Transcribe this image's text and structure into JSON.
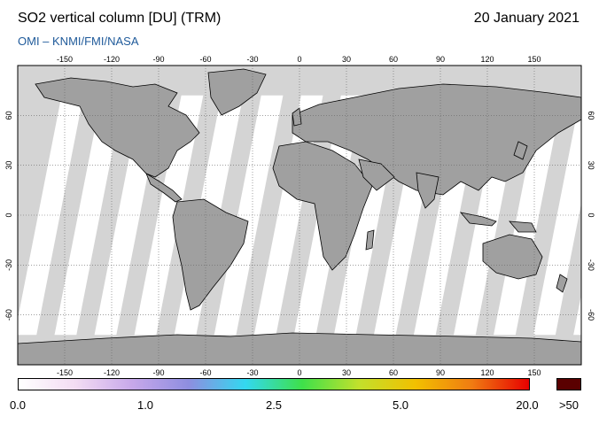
{
  "header": {
    "title": "SO2 vertical column [DU] (TRM)",
    "date": "20 January 2021",
    "source": "OMI  –  KNMI/FMI/NASA"
  },
  "map": {
    "projection": "equirectangular",
    "lon_ticks": [
      "-150",
      "-120",
      "-90",
      "-60",
      "-30",
      "0",
      "30",
      "60",
      "90",
      "120",
      "150"
    ],
    "lat_ticks": [
      "60",
      "30",
      "0",
      "-30",
      "-60"
    ],
    "colors": {
      "ocean_observed": "#ffffff",
      "land": "#a0a0a0",
      "no_data": "#d4d4d4",
      "coastline": "#000000",
      "grid": "#555555"
    }
  },
  "colorbar": {
    "labels": [
      "0.0",
      "1.0",
      "2.5",
      "5.0",
      "20.0"
    ],
    "overflow_label": ">50",
    "overflow_color": "#5a0000",
    "gradient_colors": [
      "#ffffff",
      "#f3dcf3",
      "#c7a8ea",
      "#8e8ee0",
      "#33d8f0",
      "#3ee04a",
      "#c2e02c",
      "#f2c000",
      "#f07b12",
      "#e60000"
    ]
  }
}
